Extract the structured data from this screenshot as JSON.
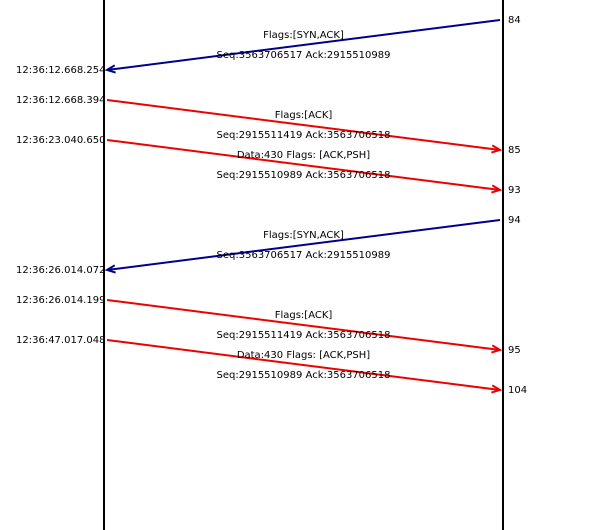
{
  "colors": {
    "lifeline": "#000000",
    "incoming": "#00008b",
    "outgoing": "#ee0000",
    "text": "#000000",
    "background": "#ffffff"
  },
  "messages": [
    {
      "direction": "incoming",
      "timestamp": "12:36:12.668.254",
      "frame": "84",
      "flags": "Flags:[SYN,ACK]",
      "seqack": "Seq:3563706517  Ack:2915510989"
    },
    {
      "direction": "outgoing",
      "timestamp": "12:36:12.668.394",
      "frame": "85",
      "flags": "Flags:[ACK]",
      "seqack": "Seq:2915511419  Ack:3563706518"
    },
    {
      "direction": "outgoing",
      "timestamp": "12:36:23.040.650",
      "frame": "93",
      "flags": "Data:430  Flags: [ACK,PSH]",
      "seqack": "Seq:2915510989  Ack:3563706518"
    },
    {
      "direction": "incoming",
      "timestamp": "12:36:26.014.072",
      "frame": "94",
      "flags": "Flags:[SYN,ACK]",
      "seqack": "Seq:3563706517  Ack:2915510989"
    },
    {
      "direction": "outgoing",
      "timestamp": "12:36:26.014.199",
      "frame": "95",
      "flags": "Flags:[ACK]",
      "seqack": "Seq:2915511419  Ack:3563706518"
    },
    {
      "direction": "outgoing",
      "timestamp": "12:36:47.017.048",
      "frame": "104",
      "flags": "Data:430  Flags: [ACK,PSH]",
      "seqack": "Seq:2915510989  Ack:3563706518"
    }
  ]
}
